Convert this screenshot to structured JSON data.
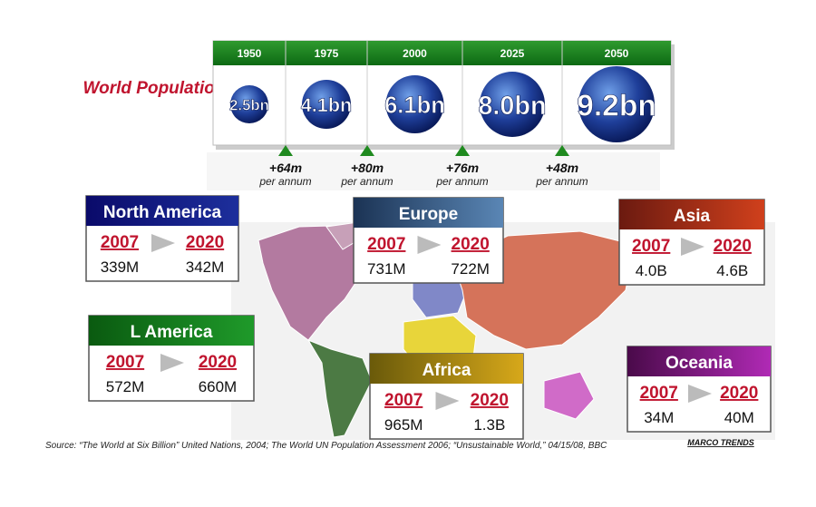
{
  "title": "World Population",
  "timeline": [
    {
      "year": "1950",
      "population": "2.5bn"
    },
    {
      "year": "1975",
      "population": "4.1bn"
    },
    {
      "year": "2000",
      "population": "6.1bn"
    },
    {
      "year": "2025",
      "population": "8.0bn"
    },
    {
      "year": "2050",
      "population": "9.2bn"
    }
  ],
  "growth": [
    {
      "value": "+64m",
      "unit": "per annum"
    },
    {
      "value": "+80m",
      "unit": "per annum"
    },
    {
      "value": "+76m",
      "unit": "per annum"
    },
    {
      "value": "+48m",
      "unit": "per annum"
    }
  ],
  "regions": [
    {
      "name": "North America",
      "from_year": "2007",
      "to_year": "2020",
      "from": "339M",
      "to": "342M"
    },
    {
      "name": "Europe",
      "from_year": "2007",
      "to_year": "2020",
      "from": "731M",
      "to": "722M"
    },
    {
      "name": "Asia",
      "from_year": "2007",
      "to_year": "2020",
      "from": "4.0B",
      "to": "4.6B"
    },
    {
      "name": "L America",
      "from_year": "2007",
      "to_year": "2020",
      "from": "572M",
      "to": "660M"
    },
    {
      "name": "Africa",
      "from_year": "2007",
      "to_year": "2020",
      "from": "965M",
      "to": "1.3B"
    },
    {
      "name": "Oceania",
      "from_year": "2007",
      "to_year": "2020",
      "from": "34M",
      "to": "40M"
    }
  ],
  "source": "Source: “The World at Six Billion” United Nations, 2004; The World UN Population Assessment 2006; “Unsustainable World,” 04/15/08, BBC",
  "brand": "MARCO TRENDS"
}
